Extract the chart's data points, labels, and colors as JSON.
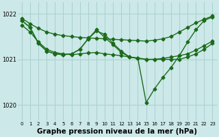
{
  "bg_color": "#cce8e8",
  "grid_color": "#aacfcf",
  "line_color": "#1a6b1a",
  "marker": "D",
  "markersize": 2.5,
  "linewidth": 1.0,
  "xlabel": "Graphe pression niveau de la mer (hPa)",
  "xlabel_fontsize": 7.5,
  "yticks": [
    1020,
    1021,
    1022
  ],
  "ylim": [
    1019.65,
    1022.25
  ],
  "xlim": [
    -0.5,
    23.5
  ],
  "xticks": [
    0,
    1,
    2,
    3,
    4,
    5,
    6,
    7,
    8,
    9,
    10,
    11,
    12,
    13,
    14,
    15,
    16,
    17,
    18,
    19,
    20,
    21,
    22,
    23
  ],
  "xtick_fontsize": 5.0,
  "ytick_fontsize": 6.0,
  "series": [
    [
      1021.9,
      1021.78,
      1021.68,
      1021.6,
      1021.55,
      1021.52,
      1021.5,
      1021.48,
      1021.47,
      1021.46,
      1021.45,
      1021.44,
      1021.43,
      1021.42,
      1021.41,
      1021.4,
      1021.42,
      1021.45,
      1021.5,
      1021.6,
      1021.7,
      1021.8,
      1021.88,
      1021.95
    ],
    [
      1021.75,
      1021.6,
      1021.38,
      1021.22,
      1021.15,
      1021.12,
      1021.1,
      1021.12,
      1021.14,
      1021.15,
      1021.12,
      1021.1,
      1021.08,
      1021.05,
      1021.03,
      1021.0,
      1021.0,
      1021.02,
      1021.05,
      1021.08,
      1021.12,
      1021.2,
      1021.3,
      1021.4
    ],
    [
      1021.85,
      1021.7,
      1021.35,
      1021.18,
      1021.12,
      1021.1,
      1021.12,
      1021.22,
      1021.45,
      1021.62,
      1021.55,
      1021.35,
      1021.18,
      1021.05,
      1021.02,
      1021.0,
      1021.0,
      1021.0,
      1021.0,
      1021.0,
      1021.05,
      1021.12,
      1021.22,
      1021.35
    ],
    [
      1021.85,
      1021.7,
      1021.35,
      1021.18,
      1021.12,
      1021.1,
      1021.12,
      1021.22,
      1021.45,
      1021.65,
      1021.48,
      1021.32,
      1021.15,
      1021.05,
      1021.02,
      1020.05,
      1020.35,
      1020.6,
      1020.82,
      1021.08,
      1021.38,
      1021.65,
      1021.85,
      1021.93
    ]
  ]
}
